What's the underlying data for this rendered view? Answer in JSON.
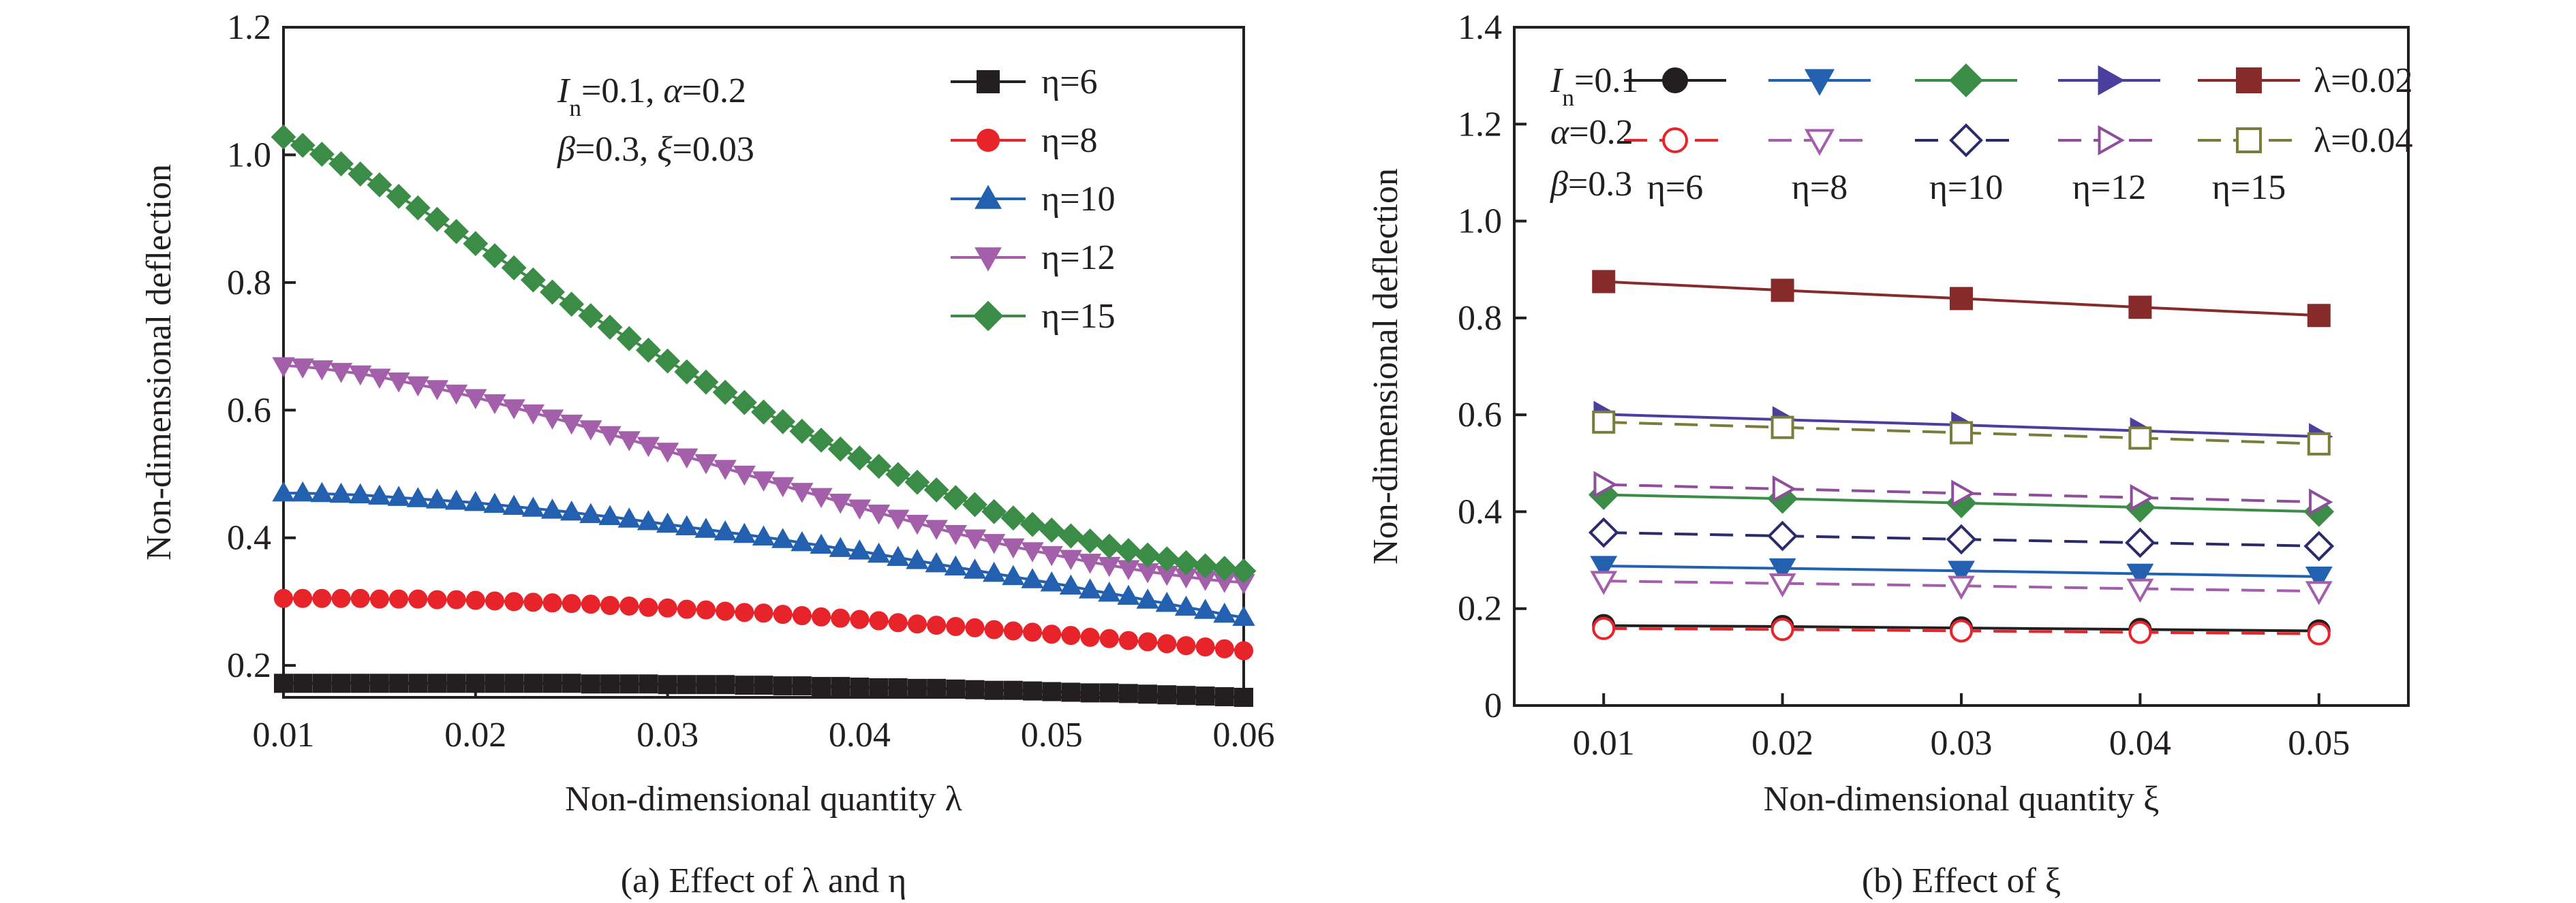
{
  "figure": {
    "panels": [
      {
        "caption": "(a) Effect of λ and η",
        "annotation": [
          {
            "parts": [
              {
                "t": "I",
                "i": true
              },
              {
                "t": "n",
                "sub": true
              },
              {
                "t": "=0.1, "
              },
              {
                "t": "α",
                "i": true
              },
              {
                "t": "=0.2"
              }
            ]
          },
          {
            "parts": [
              {
                "t": "β",
                "i": true
              },
              {
                "t": "=0.3, "
              },
              {
                "t": "ξ",
                "i": true
              },
              {
                "t": "=0.03"
              }
            ]
          }
        ]
      },
      {
        "caption": "(b) Effect of ξ",
        "annotation": [
          {
            "parts": [
              {
                "t": "I",
                "i": true
              },
              {
                "t": "n",
                "sub": true
              },
              {
                "t": "=0.1"
              }
            ]
          },
          {
            "parts": [
              {
                "t": "α",
                "i": true
              },
              {
                "t": "=0.2"
              }
            ]
          },
          {
            "parts": [
              {
                "t": "β",
                "i": true
              },
              {
                "t": "=0.3"
              }
            ]
          }
        ],
        "legend_eta_labels": [
          "η=6",
          "η=8",
          "η=10",
          "η=12",
          "η=15"
        ],
        "legend_lambda_labels": [
          "λ=0.02",
          "λ=0.04"
        ]
      }
    ]
  },
  "chart_data": [
    {
      "type": "line",
      "xlabel": "Non-dimensional quantity λ",
      "ylabel": "Non-dimensional deflection",
      "xlim": [
        0.01,
        0.06
      ],
      "ylim": [
        0.15,
        1.2
      ],
      "xticks": [
        "0.01",
        "0.02",
        "0.03",
        "0.04",
        "0.05",
        "0.06"
      ],
      "yticks": [
        "0.2",
        "0.4",
        "0.6",
        "0.8",
        "1.0",
        "1.2"
      ],
      "grid": false,
      "legend_position": "top-right",
      "x_start": 0.01,
      "x_step": 0.001,
      "series": [
        {
          "name": "η=6",
          "color": "#231f20",
          "marker": "square",
          "fill": "filled",
          "values": [
            0.172,
            0.172,
            0.172,
            0.172,
            0.172,
            0.172,
            0.172,
            0.172,
            0.172,
            0.172,
            0.172,
            0.172,
            0.172,
            0.172,
            0.172,
            0.172,
            0.171,
            0.171,
            0.171,
            0.171,
            0.17,
            0.17,
            0.17,
            0.17,
            0.169,
            0.169,
            0.168,
            0.168,
            0.167,
            0.167,
            0.166,
            0.165,
            0.165,
            0.164,
            0.164,
            0.163,
            0.162,
            0.161,
            0.161,
            0.16,
            0.159,
            0.158,
            0.157,
            0.157,
            0.156,
            0.155,
            0.154,
            0.153,
            0.152,
            0.151,
            0.15
          ]
        },
        {
          "name": "η=8",
          "color": "#e8242b",
          "marker": "circle",
          "fill": "filled",
          "values": [
            0.305,
            0.305,
            0.305,
            0.305,
            0.305,
            0.304,
            0.304,
            0.304,
            0.303,
            0.303,
            0.302,
            0.301,
            0.3,
            0.299,
            0.298,
            0.297,
            0.296,
            0.294,
            0.293,
            0.291,
            0.29,
            0.288,
            0.287,
            0.285,
            0.283,
            0.282,
            0.28,
            0.278,
            0.276,
            0.274,
            0.272,
            0.27,
            0.267,
            0.265,
            0.263,
            0.261,
            0.259,
            0.256,
            0.254,
            0.252,
            0.249,
            0.247,
            0.244,
            0.242,
            0.239,
            0.237,
            0.234,
            0.231,
            0.229,
            0.226,
            0.223
          ]
        },
        {
          "name": "η=10",
          "color": "#2361b0",
          "marker": "triangle-up",
          "fill": "filled",
          "values": [
            0.47,
            0.47,
            0.469,
            0.468,
            0.467,
            0.465,
            0.463,
            0.461,
            0.459,
            0.457,
            0.455,
            0.452,
            0.449,
            0.446,
            0.443,
            0.44,
            0.436,
            0.433,
            0.429,
            0.425,
            0.421,
            0.417,
            0.413,
            0.409,
            0.405,
            0.401,
            0.397,
            0.392,
            0.388,
            0.383,
            0.379,
            0.374,
            0.369,
            0.364,
            0.359,
            0.354,
            0.349,
            0.344,
            0.339,
            0.334,
            0.329,
            0.324,
            0.318,
            0.313,
            0.308,
            0.302,
            0.297,
            0.291,
            0.286,
            0.28,
            0.275
          ]
        },
        {
          "name": "η=12",
          "color": "#a45fab",
          "marker": "triangle-down",
          "fill": "filled",
          "values": [
            0.67,
            0.668,
            0.665,
            0.661,
            0.657,
            0.652,
            0.646,
            0.64,
            0.634,
            0.627,
            0.62,
            0.612,
            0.604,
            0.596,
            0.588,
            0.58,
            0.571,
            0.562,
            0.554,
            0.545,
            0.536,
            0.527,
            0.518,
            0.509,
            0.5,
            0.491,
            0.482,
            0.473,
            0.465,
            0.456,
            0.447,
            0.439,
            0.431,
            0.423,
            0.415,
            0.407,
            0.4,
            0.393,
            0.386,
            0.38,
            0.374,
            0.368,
            0.362,
            0.357,
            0.352,
            0.347,
            0.343,
            0.339,
            0.335,
            0.332,
            0.33
          ]
        },
        {
          "name": "η=15",
          "color": "#3a8c46",
          "marker": "diamond",
          "fill": "filled",
          "values": [
            1.028,
            1.015,
            1.001,
            0.986,
            0.97,
            0.953,
            0.935,
            0.917,
            0.899,
            0.88,
            0.861,
            0.842,
            0.823,
            0.804,
            0.785,
            0.766,
            0.748,
            0.73,
            0.712,
            0.694,
            0.677,
            0.66,
            0.644,
            0.628,
            0.612,
            0.597,
            0.582,
            0.567,
            0.553,
            0.539,
            0.525,
            0.512,
            0.499,
            0.487,
            0.475,
            0.463,
            0.452,
            0.441,
            0.431,
            0.421,
            0.412,
            0.403,
            0.395,
            0.387,
            0.38,
            0.373,
            0.367,
            0.361,
            0.356,
            0.352,
            0.348
          ]
        }
      ]
    },
    {
      "type": "line",
      "xlabel": "Non-dimensional quantity ξ",
      "ylabel": "Non-dimensional deflection",
      "xlim": [
        0.005,
        0.055
      ],
      "ylim": [
        0,
        1.4
      ],
      "xticks": [
        "0.01",
        "0.02",
        "0.03",
        "0.04",
        "0.05"
      ],
      "yticks": [
        "0",
        "0.2",
        "0.4",
        "0.6",
        "0.8",
        "1.0",
        "1.2",
        "1.4"
      ],
      "grid": false,
      "legend_position": "top",
      "x": [
        0.01,
        0.02,
        0.03,
        0.04,
        0.05
      ],
      "series": [
        {
          "name": "η=6, λ=0.02",
          "color": "#231f20",
          "marker": "circle",
          "fill": "filled",
          "dash": "solid",
          "values": [
            0.165,
            0.163,
            0.16,
            0.157,
            0.154
          ]
        },
        {
          "name": "η=8, λ=0.02",
          "color": "#2361b0",
          "marker": "triangle-down",
          "fill": "filled",
          "dash": "solid",
          "values": [
            0.288,
            0.283,
            0.278,
            0.272,
            0.266
          ]
        },
        {
          "name": "η=10, λ=0.02",
          "color": "#3a8c46",
          "marker": "diamond",
          "fill": "filled",
          "dash": "solid",
          "values": [
            0.435,
            0.427,
            0.418,
            0.409,
            0.4
          ]
        },
        {
          "name": "η=12, λ=0.02",
          "color": "#4b3f9e",
          "marker": "triangle-right",
          "fill": "filled",
          "dash": "solid",
          "values": [
            0.601,
            0.59,
            0.579,
            0.567,
            0.555
          ]
        },
        {
          "name": "η=15, λ=0.02",
          "color": "#862b2a",
          "marker": "square",
          "fill": "filled",
          "dash": "solid",
          "values": [
            0.875,
            0.857,
            0.84,
            0.822,
            0.805
          ]
        },
        {
          "name": "η=6, λ=0.04",
          "color": "#e8242b",
          "marker": "circle",
          "fill": "open",
          "dash": "dashed",
          "values": [
            0.159,
            0.157,
            0.154,
            0.151,
            0.148
          ]
        },
        {
          "name": "η=8, λ=0.04",
          "color": "#a45fab",
          "marker": "triangle-down",
          "fill": "open",
          "dash": "dashed",
          "values": [
            0.257,
            0.252,
            0.247,
            0.241,
            0.236
          ]
        },
        {
          "name": "η=10, λ=0.04",
          "color": "#2b2a6b",
          "marker": "diamond",
          "fill": "open",
          "dash": "dashed",
          "values": [
            0.357,
            0.35,
            0.343,
            0.336,
            0.329
          ]
        },
        {
          "name": "η=12, λ=0.04",
          "color": "#8e4e9c",
          "marker": "triangle-right",
          "fill": "open",
          "dash": "dashed",
          "values": [
            0.456,
            0.447,
            0.438,
            0.429,
            0.42
          ]
        },
        {
          "name": "η=15, λ=0.04",
          "color": "#7a7d3a",
          "marker": "square",
          "fill": "open",
          "dash": "dashed",
          "values": [
            0.585,
            0.574,
            0.563,
            0.552,
            0.54
          ]
        }
      ]
    }
  ]
}
